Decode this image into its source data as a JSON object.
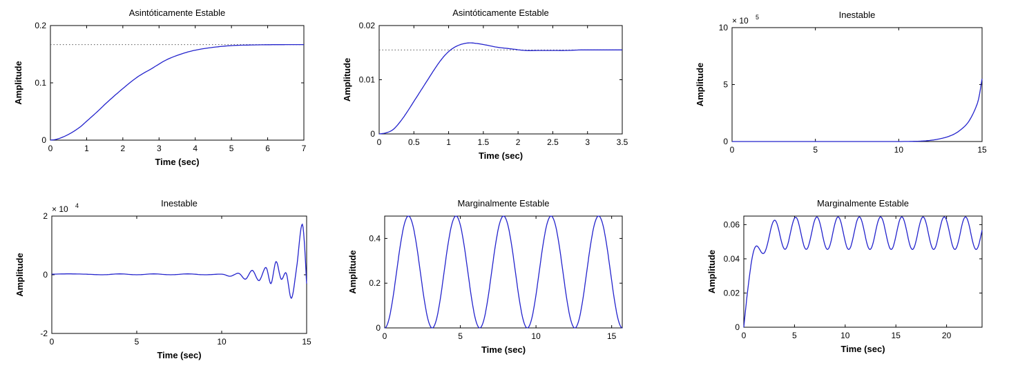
{
  "figure": {
    "line_color": "#2222cc",
    "ref_color": "#555555",
    "axis_color": "#000000"
  },
  "chart_data": [
    {
      "type": "line",
      "title": "Asintóticamente Estable",
      "xlabel": "Time (sec)",
      "ylabel": "Amplitude",
      "xlim": [
        0,
        7
      ],
      "ylim": [
        0,
        0.2
      ],
      "xticks": [
        0,
        1,
        2,
        3,
        4,
        5,
        6,
        7
      ],
      "yticks": [
        0,
        0.1,
        0.2
      ],
      "xtick_labels": [
        "0",
        "1",
        "2",
        "3",
        "4",
        "5",
        "6",
        "7"
      ],
      "ytick_labels": [
        "0",
        "0.1",
        "0.2"
      ],
      "exponent_label": "",
      "steady_state": 0.1667,
      "series": [
        {
          "x": [
            0,
            0.2,
            0.5,
            0.8,
            1.0,
            1.3,
            1.6,
            2.0,
            2.4,
            2.8,
            3.2,
            3.6,
            4.0,
            4.5,
            5.0,
            5.5,
            6.0,
            6.5,
            7.0
          ],
          "values": [
            0,
            0.002,
            0.01,
            0.022,
            0.033,
            0.05,
            0.068,
            0.09,
            0.11,
            0.125,
            0.14,
            0.15,
            0.157,
            0.162,
            0.165,
            0.166,
            0.1665,
            0.1667,
            0.1667
          ]
        }
      ]
    },
    {
      "type": "line",
      "title": "Asintóticamente Estable",
      "xlabel": "Time (sec)",
      "ylabel": "Amplitude",
      "xlim": [
        0,
        3.5
      ],
      "ylim": [
        0,
        0.02
      ],
      "xticks": [
        0,
        0.5,
        1,
        1.5,
        2,
        2.5,
        3,
        3.5
      ],
      "yticks": [
        0,
        0.01,
        0.02
      ],
      "xtick_labels": [
        "0",
        "0.5",
        "1",
        "1.5",
        "2",
        "2.5",
        "3",
        "3.5"
      ],
      "ytick_labels": [
        "0",
        "0.01",
        "0.02"
      ],
      "exponent_label": "",
      "steady_state": 0.0155,
      "series": [
        {
          "x": [
            0,
            0.1,
            0.2,
            0.3,
            0.4,
            0.5,
            0.6,
            0.7,
            0.8,
            0.9,
            1.0,
            1.1,
            1.2,
            1.3,
            1.4,
            1.5,
            1.7,
            1.9,
            2.1,
            2.3,
            2.5,
            2.7,
            2.9,
            3.1,
            3.3,
            3.5
          ],
          "values": [
            0,
            0.0002,
            0.0008,
            0.0022,
            0.004,
            0.006,
            0.008,
            0.01,
            0.012,
            0.0138,
            0.0152,
            0.0161,
            0.0166,
            0.0168,
            0.0167,
            0.0165,
            0.016,
            0.0157,
            0.0154,
            0.0154,
            0.0154,
            0.0154,
            0.0155,
            0.0155,
            0.0155,
            0.0155
          ]
        }
      ]
    },
    {
      "type": "line",
      "title": "Inestable",
      "xlabel": "",
      "ylabel": "Amplitude",
      "xlim": [
        0,
        15
      ],
      "ylim": [
        0,
        10
      ],
      "xticks": [
        0,
        5,
        10,
        15
      ],
      "yticks": [
        0,
        5,
        10
      ],
      "xtick_labels": [
        "0",
        "5",
        "10",
        "15"
      ],
      "ytick_labels": [
        "0",
        "5",
        "10"
      ],
      "exponent_label": "× 10",
      "exponent_power": "5",
      "series": [
        {
          "x": [
            0,
            2,
            4,
            6,
            8,
            10,
            11,
            11.5,
            12,
            12.5,
            13,
            13.5,
            14,
            14.3,
            14.6,
            14.8,
            15
          ],
          "values": [
            0,
            0,
            0,
            0,
            0,
            0,
            0.02,
            0.05,
            0.12,
            0.25,
            0.45,
            0.8,
            1.4,
            2.0,
            2.9,
            3.8,
            5.5
          ]
        }
      ]
    },
    {
      "type": "line",
      "title": "Inestable",
      "xlabel": "Time (sec)",
      "ylabel": "Amplitude",
      "xlim": [
        0,
        15
      ],
      "ylim": [
        -2,
        2
      ],
      "xticks": [
        0,
        5,
        10,
        15
      ],
      "yticks": [
        -2,
        0,
        2
      ],
      "xtick_labels": [
        "0",
        "5",
        "10",
        "15"
      ],
      "ytick_labels": [
        "-2",
        "0",
        "2"
      ],
      "exponent_label": "× 10",
      "exponent_power": "4",
      "series": [
        {
          "x": [
            0,
            1,
            2,
            3,
            4,
            5,
            6,
            7,
            8,
            9,
            10,
            10.5,
            11,
            11.4,
            11.8,
            12.2,
            12.6,
            12.9,
            13.2,
            13.5,
            13.8,
            14.1,
            14.4,
            14.75,
            15
          ],
          "values": [
            0.02,
            0.03,
            0.02,
            0.0,
            0.03,
            0.0,
            0.03,
            0.0,
            0.03,
            0.0,
            0.02,
            -0.05,
            0.05,
            -0.15,
            0.15,
            -0.2,
            0.25,
            -0.3,
            0.45,
            -0.15,
            0.05,
            -0.8,
            0.2,
            1.72,
            -0.3
          ]
        }
      ]
    },
    {
      "type": "line",
      "title": "Marginalmente Estable",
      "xlabel": "Time (sec)",
      "ylabel": "Amplitude",
      "xlim": [
        0,
        15.7
      ],
      "ylim": [
        0,
        0.5
      ],
      "xticks": [
        0,
        5,
        10,
        15
      ],
      "yticks": [
        0,
        0.2,
        0.4
      ],
      "xtick_labels": [
        "0",
        "5",
        "10",
        "15"
      ],
      "ytick_labels": [
        "0",
        "0.2",
        "0.4"
      ],
      "exponent_label": "",
      "series": [
        {
          "model": "0.25*(1-cos(2t))",
          "x_range": [
            0,
            15.7
          ]
        }
      ]
    },
    {
      "type": "line",
      "title": "Marginalmente Estable",
      "xlabel": "Time (sec)",
      "ylabel": "Amplitude",
      "xlim": [
        0,
        23.5
      ],
      "ylim": [
        0,
        0.065
      ],
      "xticks": [
        0,
        5,
        10,
        15,
        20
      ],
      "yticks": [
        0,
        0.02,
        0.04,
        0.06
      ],
      "xtick_labels": [
        "0",
        "5",
        "10",
        "15",
        "20"
      ],
      "ytick_labels": [
        "0",
        "0.02",
        "0.04",
        "0.06"
      ],
      "exponent_label": "",
      "series": [
        {
          "model": "0.055 - 0.055*exp(-1.3t) + 0.0095*sin(3t - 1.2)*(1-exp(-0.8t))",
          "x_range": [
            0,
            23.5
          ]
        }
      ]
    }
  ]
}
